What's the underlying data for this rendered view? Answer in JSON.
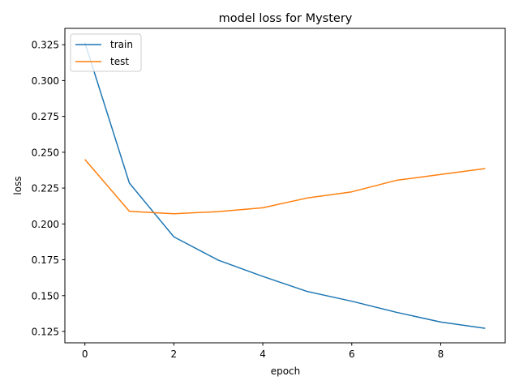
{
  "chart_data": {
    "type": "line",
    "title": "model loss for Mystery",
    "xlabel": "epoch",
    "ylabel": "loss",
    "xlim": [
      -0.45,
      9.45
    ],
    "ylim": [
      0.1171,
      0.3364
    ],
    "xticks": [
      0,
      2,
      4,
      6,
      8
    ],
    "xtick_labels": [
      "0",
      "2",
      "4",
      "6",
      "8"
    ],
    "yticks": [
      0.125,
      0.15,
      0.175,
      0.2,
      0.225,
      0.25,
      0.275,
      0.3,
      0.325
    ],
    "ytick_labels": [
      "0.125",
      "0.150",
      "0.175",
      "0.200",
      "0.225",
      "0.250",
      "0.275",
      "0.300",
      "0.325"
    ],
    "grid": false,
    "legend_position": "top-left",
    "x": [
      0,
      1,
      2,
      3,
      4,
      5,
      6,
      7,
      8,
      9
    ],
    "series": [
      {
        "name": "train",
        "color": "#1f77b4",
        "values": [
          0.3265,
          0.2285,
          0.191,
          0.1747,
          0.1634,
          0.1529,
          0.1461,
          0.1384,
          0.1316,
          0.1272
        ]
      },
      {
        "name": "test",
        "color": "#ff7f0e",
        "values": [
          0.245,
          0.2088,
          0.2071,
          0.2086,
          0.2113,
          0.2181,
          0.2224,
          0.2304,
          0.2345,
          0.2386
        ]
      }
    ]
  }
}
